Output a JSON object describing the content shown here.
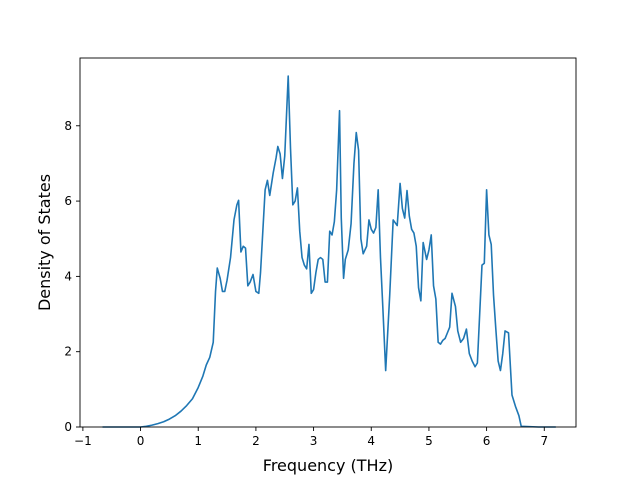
{
  "chart_data": {
    "type": "line",
    "title": "",
    "xlabel": "Frequency (THz)",
    "ylabel": "Density of States",
    "xlim": [
      -1.05,
      7.55
    ],
    "ylim": [
      0,
      9.8
    ],
    "xticks": [
      -1,
      0,
      1,
      2,
      3,
      4,
      5,
      6,
      7
    ],
    "yticks": [
      0,
      2,
      4,
      6,
      8
    ],
    "xtick_labels": [
      "−1",
      "0",
      "1",
      "2",
      "3",
      "4",
      "5",
      "6",
      "7"
    ],
    "ytick_labels": [
      "0",
      "2",
      "4",
      "6",
      "8"
    ],
    "grid": false,
    "line_color": "#1f77b4",
    "series": [
      {
        "x": [
          -0.66,
          -0.4,
          -0.2,
          0.0,
          0.1,
          0.2,
          0.3,
          0.4,
          0.5,
          0.6,
          0.7,
          0.8,
          0.9,
          1.0,
          1.08,
          1.14,
          1.2,
          1.26,
          1.3,
          1.33,
          1.38,
          1.42,
          1.46,
          1.5,
          1.56,
          1.62,
          1.67,
          1.7,
          1.74,
          1.78,
          1.82,
          1.86,
          1.9,
          1.95,
          2.0,
          2.05,
          2.08,
          2.12,
          2.16,
          2.2,
          2.24,
          2.3,
          2.35,
          2.38,
          2.42,
          2.46,
          2.5,
          2.56,
          2.6,
          2.64,
          2.68,
          2.72,
          2.76,
          2.8,
          2.84,
          2.88,
          2.92,
          2.96,
          3.0,
          3.04,
          3.08,
          3.12,
          3.16,
          3.2,
          3.24,
          3.28,
          3.32,
          3.36,
          3.4,
          3.45,
          3.48,
          3.52,
          3.55,
          3.6,
          3.65,
          3.7,
          3.74,
          3.78,
          3.82,
          3.86,
          3.92,
          3.96,
          4.0,
          4.04,
          4.08,
          4.12,
          4.16,
          4.2,
          4.25,
          4.32,
          4.38,
          4.45,
          4.5,
          4.54,
          4.58,
          4.62,
          4.66,
          4.7,
          4.74,
          4.78,
          4.82,
          4.86,
          4.9,
          4.96,
          5.0,
          5.04,
          5.08,
          5.12,
          5.16,
          5.2,
          5.24,
          5.28,
          5.32,
          5.36,
          5.4,
          5.46,
          5.5,
          5.55,
          5.6,
          5.65,
          5.7,
          5.75,
          5.8,
          5.84,
          5.88,
          5.92,
          5.96,
          6.0,
          6.04,
          6.08,
          6.12,
          6.16,
          6.2,
          6.24,
          6.28,
          6.32,
          6.38,
          6.44,
          6.5,
          6.56,
          6.6,
          6.9,
          7.2
        ],
        "y": [
          0.0,
          0.0,
          0.0,
          0.0,
          0.02,
          0.05,
          0.09,
          0.14,
          0.21,
          0.3,
          0.42,
          0.57,
          0.75,
          1.05,
          1.35,
          1.65,
          1.85,
          2.25,
          3.6,
          4.22,
          3.95,
          3.6,
          3.6,
          3.9,
          4.5,
          5.5,
          5.9,
          6.02,
          4.65,
          4.8,
          4.75,
          3.75,
          3.85,
          4.05,
          3.6,
          3.55,
          4.1,
          5.2,
          6.3,
          6.55,
          6.15,
          6.75,
          7.15,
          7.45,
          7.25,
          6.6,
          7.2,
          9.32,
          7.4,
          5.9,
          6.0,
          6.35,
          5.2,
          4.5,
          4.3,
          4.2,
          4.85,
          3.55,
          3.65,
          4.1,
          4.45,
          4.5,
          4.45,
          3.85,
          3.85,
          5.2,
          5.1,
          5.45,
          6.3,
          8.4,
          5.55,
          3.95,
          4.45,
          4.7,
          5.4,
          7.0,
          7.82,
          7.35,
          5.0,
          4.6,
          4.8,
          5.5,
          5.25,
          5.15,
          5.3,
          6.3,
          4.5,
          3.2,
          1.5,
          3.5,
          5.5,
          5.35,
          6.47,
          5.8,
          5.55,
          6.28,
          5.6,
          5.25,
          5.15,
          4.8,
          3.7,
          3.35,
          4.9,
          4.45,
          4.7,
          5.1,
          3.75,
          3.4,
          2.25,
          2.2,
          2.3,
          2.35,
          2.5,
          2.65,
          3.55,
          3.2,
          2.55,
          2.25,
          2.35,
          2.6,
          1.95,
          1.75,
          1.6,
          1.7,
          3.0,
          4.3,
          4.35,
          6.3,
          5.1,
          4.85,
          3.5,
          2.6,
          1.75,
          1.5,
          1.95,
          2.55,
          2.5,
          0.85,
          0.55,
          0.3,
          0.02,
          0.0,
          0.0
        ]
      }
    ]
  }
}
